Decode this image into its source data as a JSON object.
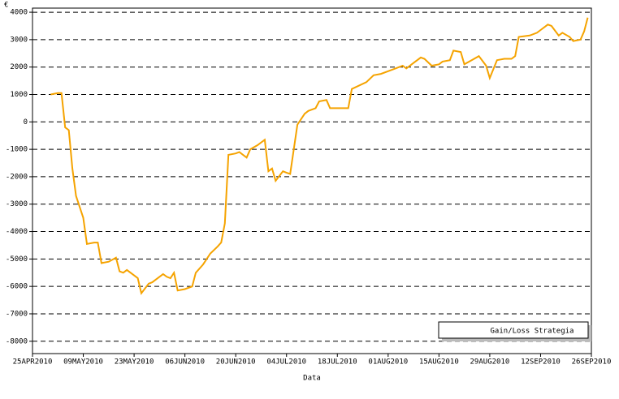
{
  "chart_data": {
    "type": "line",
    "y_label": "€",
    "x_label": "Data",
    "x": [
      "2010-04-30",
      "2010-05-02",
      "2010-05-03",
      "2010-05-04",
      "2010-05-05",
      "2010-05-06",
      "2010-05-07",
      "2010-05-09",
      "2010-05-10",
      "2010-05-12",
      "2010-05-13",
      "2010-05-14",
      "2010-05-16",
      "2010-05-18",
      "2010-05-19",
      "2010-05-20",
      "2010-05-21",
      "2010-05-23",
      "2010-05-24",
      "2010-05-25",
      "2010-05-27",
      "2010-05-28",
      "2010-05-29",
      "2010-05-31",
      "2010-06-01",
      "2010-06-02",
      "2010-06-03",
      "2010-06-04",
      "2010-06-06",
      "2010-06-08",
      "2010-06-09",
      "2010-06-11",
      "2010-06-13",
      "2010-06-15",
      "2010-06-16",
      "2010-06-17",
      "2010-06-18",
      "2010-06-20",
      "2010-06-21",
      "2010-06-23",
      "2010-06-24",
      "2010-06-26",
      "2010-06-28",
      "2010-06-29",
      "2010-06-30",
      "2010-07-01",
      "2010-07-03",
      "2010-07-04",
      "2010-07-05",
      "2010-07-07",
      "2010-07-09",
      "2010-07-10",
      "2010-07-12",
      "2010-07-13",
      "2010-07-15",
      "2010-07-16",
      "2010-07-19",
      "2010-07-21",
      "2010-07-22",
      "2010-07-26",
      "2010-07-28",
      "2010-07-30",
      "2010-08-01",
      "2010-08-03",
      "2010-08-05",
      "2010-08-06",
      "2010-08-08",
      "2010-08-10",
      "2010-08-11",
      "2010-08-13",
      "2010-08-15",
      "2010-08-16",
      "2010-08-18",
      "2010-08-19",
      "2010-08-21",
      "2010-08-22",
      "2010-08-24",
      "2010-08-26",
      "2010-08-28",
      "2010-08-29",
      "2010-08-31",
      "2010-09-02",
      "2010-09-04",
      "2010-09-05",
      "2010-09-06",
      "2010-09-09",
      "2010-09-11",
      "2010-09-12",
      "2010-09-14",
      "2010-09-15",
      "2010-09-17",
      "2010-09-18",
      "2010-09-20",
      "2010-09-21",
      "2010-09-23",
      "2010-09-24",
      "2010-09-25"
    ],
    "series": [
      {
        "name": "Gain/Loss Strategia",
        "color": "#f5a300",
        "values": [
          1000,
          1050,
          1050,
          -200,
          -300,
          -1700,
          -2700,
          -3500,
          -4450,
          -4400,
          -4400,
          -5150,
          -5100,
          -4950,
          -5450,
          -5500,
          -5400,
          -5600,
          -5700,
          -6250,
          -5900,
          -5850,
          -5750,
          -5550,
          -5650,
          -5700,
          -5500,
          -6150,
          -6100,
          -6000,
          -5500,
          -5200,
          -4800,
          -4550,
          -4400,
          -3700,
          -1200,
          -1150,
          -1100,
          -1300,
          -1000,
          -850,
          -650,
          -1800,
          -1700,
          -2150,
          -1800,
          -1850,
          -1900,
          -100,
          300,
          400,
          500,
          750,
          800,
          500,
          500,
          500,
          1200,
          1450,
          1700,
          1750,
          1850,
          1950,
          2050,
          1950,
          2150,
          2350,
          2300,
          2050,
          2100,
          2200,
          2250,
          2600,
          2550,
          2100,
          2250,
          2400,
          2050,
          1600,
          2250,
          2300,
          2300,
          2400,
          3100,
          3150,
          3250,
          3350,
          3550,
          3500,
          3150,
          3250,
          3100,
          2950,
          3000,
          3300,
          3800
        ]
      }
    ],
    "xlim": [
      "2010-04-25",
      "2010-09-26"
    ],
    "xticks": [
      {
        "value": "2010-04-25",
        "label": "25APR2010"
      },
      {
        "value": "2010-05-09",
        "label": "09MAY2010"
      },
      {
        "value": "2010-05-23",
        "label": "23MAY2010"
      },
      {
        "value": "2010-06-06",
        "label": "06JUN2010"
      },
      {
        "value": "2010-06-20",
        "label": "20JUN2010"
      },
      {
        "value": "2010-07-04",
        "label": "04JUL2010"
      },
      {
        "value": "2010-07-18",
        "label": "18JUL2010"
      },
      {
        "value": "2010-08-01",
        "label": "01AUG2010"
      },
      {
        "value": "2010-08-15",
        "label": "15AUG2010"
      },
      {
        "value": "2010-08-29",
        "label": "29AUG2010"
      },
      {
        "value": "2010-09-12",
        "label": "12SEP2010"
      },
      {
        "value": "2010-09-26",
        "label": "26SEP2010"
      }
    ],
    "ylim": [
      -8450,
      4150
    ],
    "yticks": [
      4000,
      3000,
      2000,
      1000,
      0,
      -1000,
      -2000,
      -3000,
      -4000,
      -5000,
      -6000,
      -7000,
      -8000
    ],
    "grid": true
  }
}
